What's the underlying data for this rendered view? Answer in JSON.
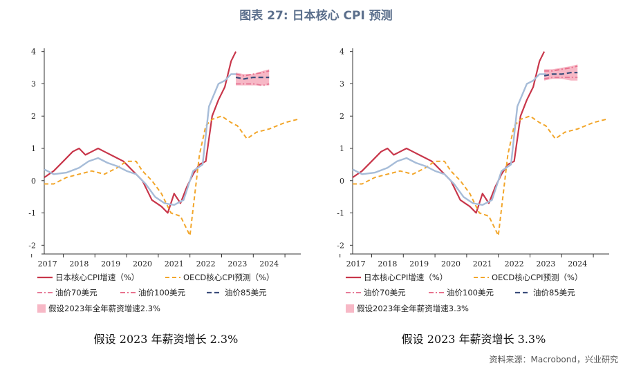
{
  "figure": {
    "title": "图表 27: 日本核心 CPI 预测",
    "source": "资料来源：Macrobond，兴业研究"
  },
  "legend": {
    "core_cpi": "日本核心CPI增速（%）",
    "oecd": "OECD核心CPI预测（%）",
    "oil70": "油价70美元",
    "oil100": "油价100美元",
    "oil85": "油价85美元"
  },
  "colors": {
    "core_cpi": "#c8364a",
    "oecd": "#f2a62b",
    "proxy": "#a6bcd8",
    "oil70": "#e77b98",
    "oil100": "#e8718d",
    "oil85": "#3a4d7a",
    "band": "#f7b8c6"
  },
  "chart_data": [
    {
      "type": "line",
      "caption": "假设 2023 年薪资增长 2.3%",
      "band_legend": "假设2023年全年薪资增速2.3%",
      "x_tick_labels": [
        "2017",
        "2018",
        "2019",
        "2020",
        "2021",
        "2022",
        "2023",
        "2024"
      ],
      "y_ticks": [
        4,
        3,
        2,
        1,
        0,
        -1,
        -2
      ],
      "ylim": [
        -2.1,
        4.1
      ],
      "xlim": [
        2016.9,
        2025.0
      ],
      "series": [
        {
          "key": "core_cpi",
          "name": "日本核心CPI增速（%）",
          "x": [
            2016.9,
            2017.2,
            2017.5,
            2017.8,
            2018.0,
            2018.2,
            2018.4,
            2018.6,
            2018.8,
            2019.0,
            2019.2,
            2019.4,
            2019.6,
            2019.8,
            2020.0,
            2020.3,
            2020.6,
            2020.8,
            2021.0,
            2021.2,
            2021.4,
            2021.6,
            2021.8,
            2022.0,
            2022.2,
            2022.4,
            2022.6,
            2022.8,
            2022.95
          ],
          "y": [
            0.1,
            0.3,
            0.6,
            0.9,
            1.0,
            0.8,
            0.9,
            1.0,
            0.9,
            0.8,
            0.7,
            0.6,
            0.4,
            0.2,
            0.0,
            -0.6,
            -0.8,
            -1.0,
            -0.4,
            -0.7,
            -0.2,
            0.2,
            0.5,
            0.6,
            2.0,
            2.5,
            2.9,
            3.7,
            4.0
          ]
        },
        {
          "key": "oecd",
          "name": "OECD核心CPI预测（%）",
          "x": [
            2016.9,
            2017.2,
            2017.6,
            2018.0,
            2018.4,
            2018.8,
            2019.2,
            2019.5,
            2019.8,
            2020.0,
            2020.3,
            2020.6,
            2020.9,
            2021.2,
            2021.5,
            2021.8,
            2022.0,
            2022.2,
            2022.5,
            2022.8,
            2023.0,
            2023.3,
            2023.6,
            2024.0,
            2024.5,
            2024.9
          ],
          "y": [
            -0.1,
            -0.1,
            0.1,
            0.2,
            0.3,
            0.2,
            0.4,
            0.6,
            0.6,
            0.3,
            0.0,
            -0.4,
            -1.0,
            -1.1,
            -1.7,
            0.8,
            1.7,
            1.9,
            2.0,
            1.8,
            1.7,
            1.3,
            1.5,
            1.6,
            1.8,
            1.9
          ]
        },
        {
          "key": "proxy",
          "name": "",
          "x": [
            2016.9,
            2017.2,
            2017.6,
            2018.0,
            2018.3,
            2018.6,
            2018.9,
            2019.2,
            2019.5,
            2019.8,
            2020.1,
            2020.4,
            2020.7,
            2021.0,
            2021.3,
            2021.6,
            2021.9,
            2022.1,
            2022.4,
            2022.6,
            2022.8,
            2023.0
          ],
          "y": [
            0.35,
            0.2,
            0.25,
            0.4,
            0.6,
            0.7,
            0.55,
            0.45,
            0.3,
            0.2,
            -0.1,
            -0.5,
            -0.7,
            -0.75,
            -0.6,
            0.3,
            0.5,
            2.3,
            3.0,
            3.1,
            3.3,
            3.3
          ]
        },
        {
          "key": "oil70",
          "name": "油价70美元",
          "x": [
            2022.95,
            2023.2,
            2023.5,
            2023.8,
            2024.0
          ],
          "y": [
            3.0,
            3.0,
            3.0,
            2.95,
            3.0
          ]
        },
        {
          "key": "oil100",
          "name": "油价100美元",
          "x": [
            2022.95,
            2023.2,
            2023.5,
            2023.8,
            2024.0
          ],
          "y": [
            3.3,
            3.25,
            3.3,
            3.35,
            3.4
          ]
        },
        {
          "key": "oil85",
          "name": "油价85美元",
          "x": [
            2022.95,
            2023.2,
            2023.5,
            2023.8,
            2024.0
          ],
          "y": [
            3.2,
            3.15,
            3.2,
            3.2,
            3.2
          ]
        }
      ],
      "band": {
        "x": [
          2022.95,
          2023.2,
          2023.5,
          2023.8,
          2024.0
        ],
        "low": [
          2.95,
          2.95,
          2.95,
          2.95,
          2.95
        ],
        "high": [
          3.35,
          3.3,
          3.3,
          3.4,
          3.45
        ]
      }
    },
    {
      "type": "line",
      "caption": "假设 2023 年薪资增长 3.3%",
      "band_legend": "假设2023年全年薪资增速3.3%",
      "x_tick_labels": [
        "2017",
        "2018",
        "2019",
        "2020",
        "2021",
        "2022",
        "2023",
        "2024"
      ],
      "y_ticks": [
        4,
        3,
        2,
        1,
        0,
        -1,
        -2
      ],
      "ylim": [
        -2.1,
        4.1
      ],
      "xlim": [
        2016.9,
        2025.0
      ],
      "series": [
        {
          "key": "core_cpi",
          "name": "日本核心CPI增速（%）",
          "x": [
            2016.9,
            2017.2,
            2017.5,
            2017.8,
            2018.0,
            2018.2,
            2018.4,
            2018.6,
            2018.8,
            2019.0,
            2019.2,
            2019.4,
            2019.6,
            2019.8,
            2020.0,
            2020.3,
            2020.6,
            2020.8,
            2021.0,
            2021.2,
            2021.4,
            2021.6,
            2021.8,
            2022.0,
            2022.2,
            2022.4,
            2022.6,
            2022.8,
            2022.95
          ],
          "y": [
            0.1,
            0.3,
            0.6,
            0.9,
            1.0,
            0.8,
            0.9,
            1.0,
            0.9,
            0.8,
            0.7,
            0.6,
            0.4,
            0.2,
            0.0,
            -0.6,
            -0.8,
            -1.0,
            -0.4,
            -0.7,
            -0.2,
            0.2,
            0.5,
            0.6,
            2.0,
            2.5,
            2.9,
            3.7,
            4.0
          ]
        },
        {
          "key": "oecd",
          "name": "OECD核心CPI预测（%）",
          "x": [
            2016.9,
            2017.2,
            2017.6,
            2018.0,
            2018.4,
            2018.8,
            2019.2,
            2019.5,
            2019.8,
            2020.0,
            2020.3,
            2020.6,
            2020.9,
            2021.2,
            2021.5,
            2021.8,
            2022.0,
            2022.2,
            2022.5,
            2022.8,
            2023.0,
            2023.3,
            2023.6,
            2024.0,
            2024.5,
            2024.9
          ],
          "y": [
            -0.1,
            -0.1,
            0.1,
            0.2,
            0.3,
            0.2,
            0.4,
            0.6,
            0.6,
            0.3,
            0.0,
            -0.4,
            -1.0,
            -1.1,
            -1.7,
            0.8,
            1.7,
            1.9,
            2.0,
            1.8,
            1.7,
            1.3,
            1.5,
            1.6,
            1.8,
            1.9
          ]
        },
        {
          "key": "proxy",
          "name": "",
          "x": [
            2016.9,
            2017.2,
            2017.6,
            2018.0,
            2018.3,
            2018.6,
            2018.9,
            2019.2,
            2019.5,
            2019.8,
            2020.1,
            2020.4,
            2020.7,
            2021.0,
            2021.3,
            2021.6,
            2021.9,
            2022.1,
            2022.4,
            2022.6,
            2022.8,
            2023.0
          ],
          "y": [
            0.35,
            0.2,
            0.25,
            0.4,
            0.6,
            0.7,
            0.55,
            0.45,
            0.3,
            0.2,
            -0.1,
            -0.5,
            -0.7,
            -0.75,
            -0.6,
            0.3,
            0.5,
            2.3,
            3.0,
            3.1,
            3.3,
            3.3
          ]
        },
        {
          "key": "oil70",
          "name": "油价70美元",
          "x": [
            2022.95,
            2023.2,
            2023.5,
            2023.8,
            2024.0
          ],
          "y": [
            3.15,
            3.2,
            3.2,
            3.2,
            3.2
          ]
        },
        {
          "key": "oil100",
          "name": "油价100美元",
          "x": [
            2022.95,
            2023.2,
            2023.5,
            2023.8,
            2024.0
          ],
          "y": [
            3.4,
            3.4,
            3.45,
            3.5,
            3.55
          ]
        },
        {
          "key": "oil85",
          "name": "油价85美元",
          "x": [
            2022.95,
            2023.2,
            2023.5,
            2023.8,
            2024.0
          ],
          "y": [
            3.25,
            3.3,
            3.3,
            3.35,
            3.35
          ]
        }
      ],
      "band": {
        "x": [
          2022.95,
          2023.2,
          2023.5,
          2023.8,
          2024.0
        ],
        "low": [
          3.1,
          3.15,
          3.15,
          3.1,
          3.1
        ],
        "high": [
          3.45,
          3.45,
          3.5,
          3.55,
          3.6
        ]
      }
    }
  ]
}
